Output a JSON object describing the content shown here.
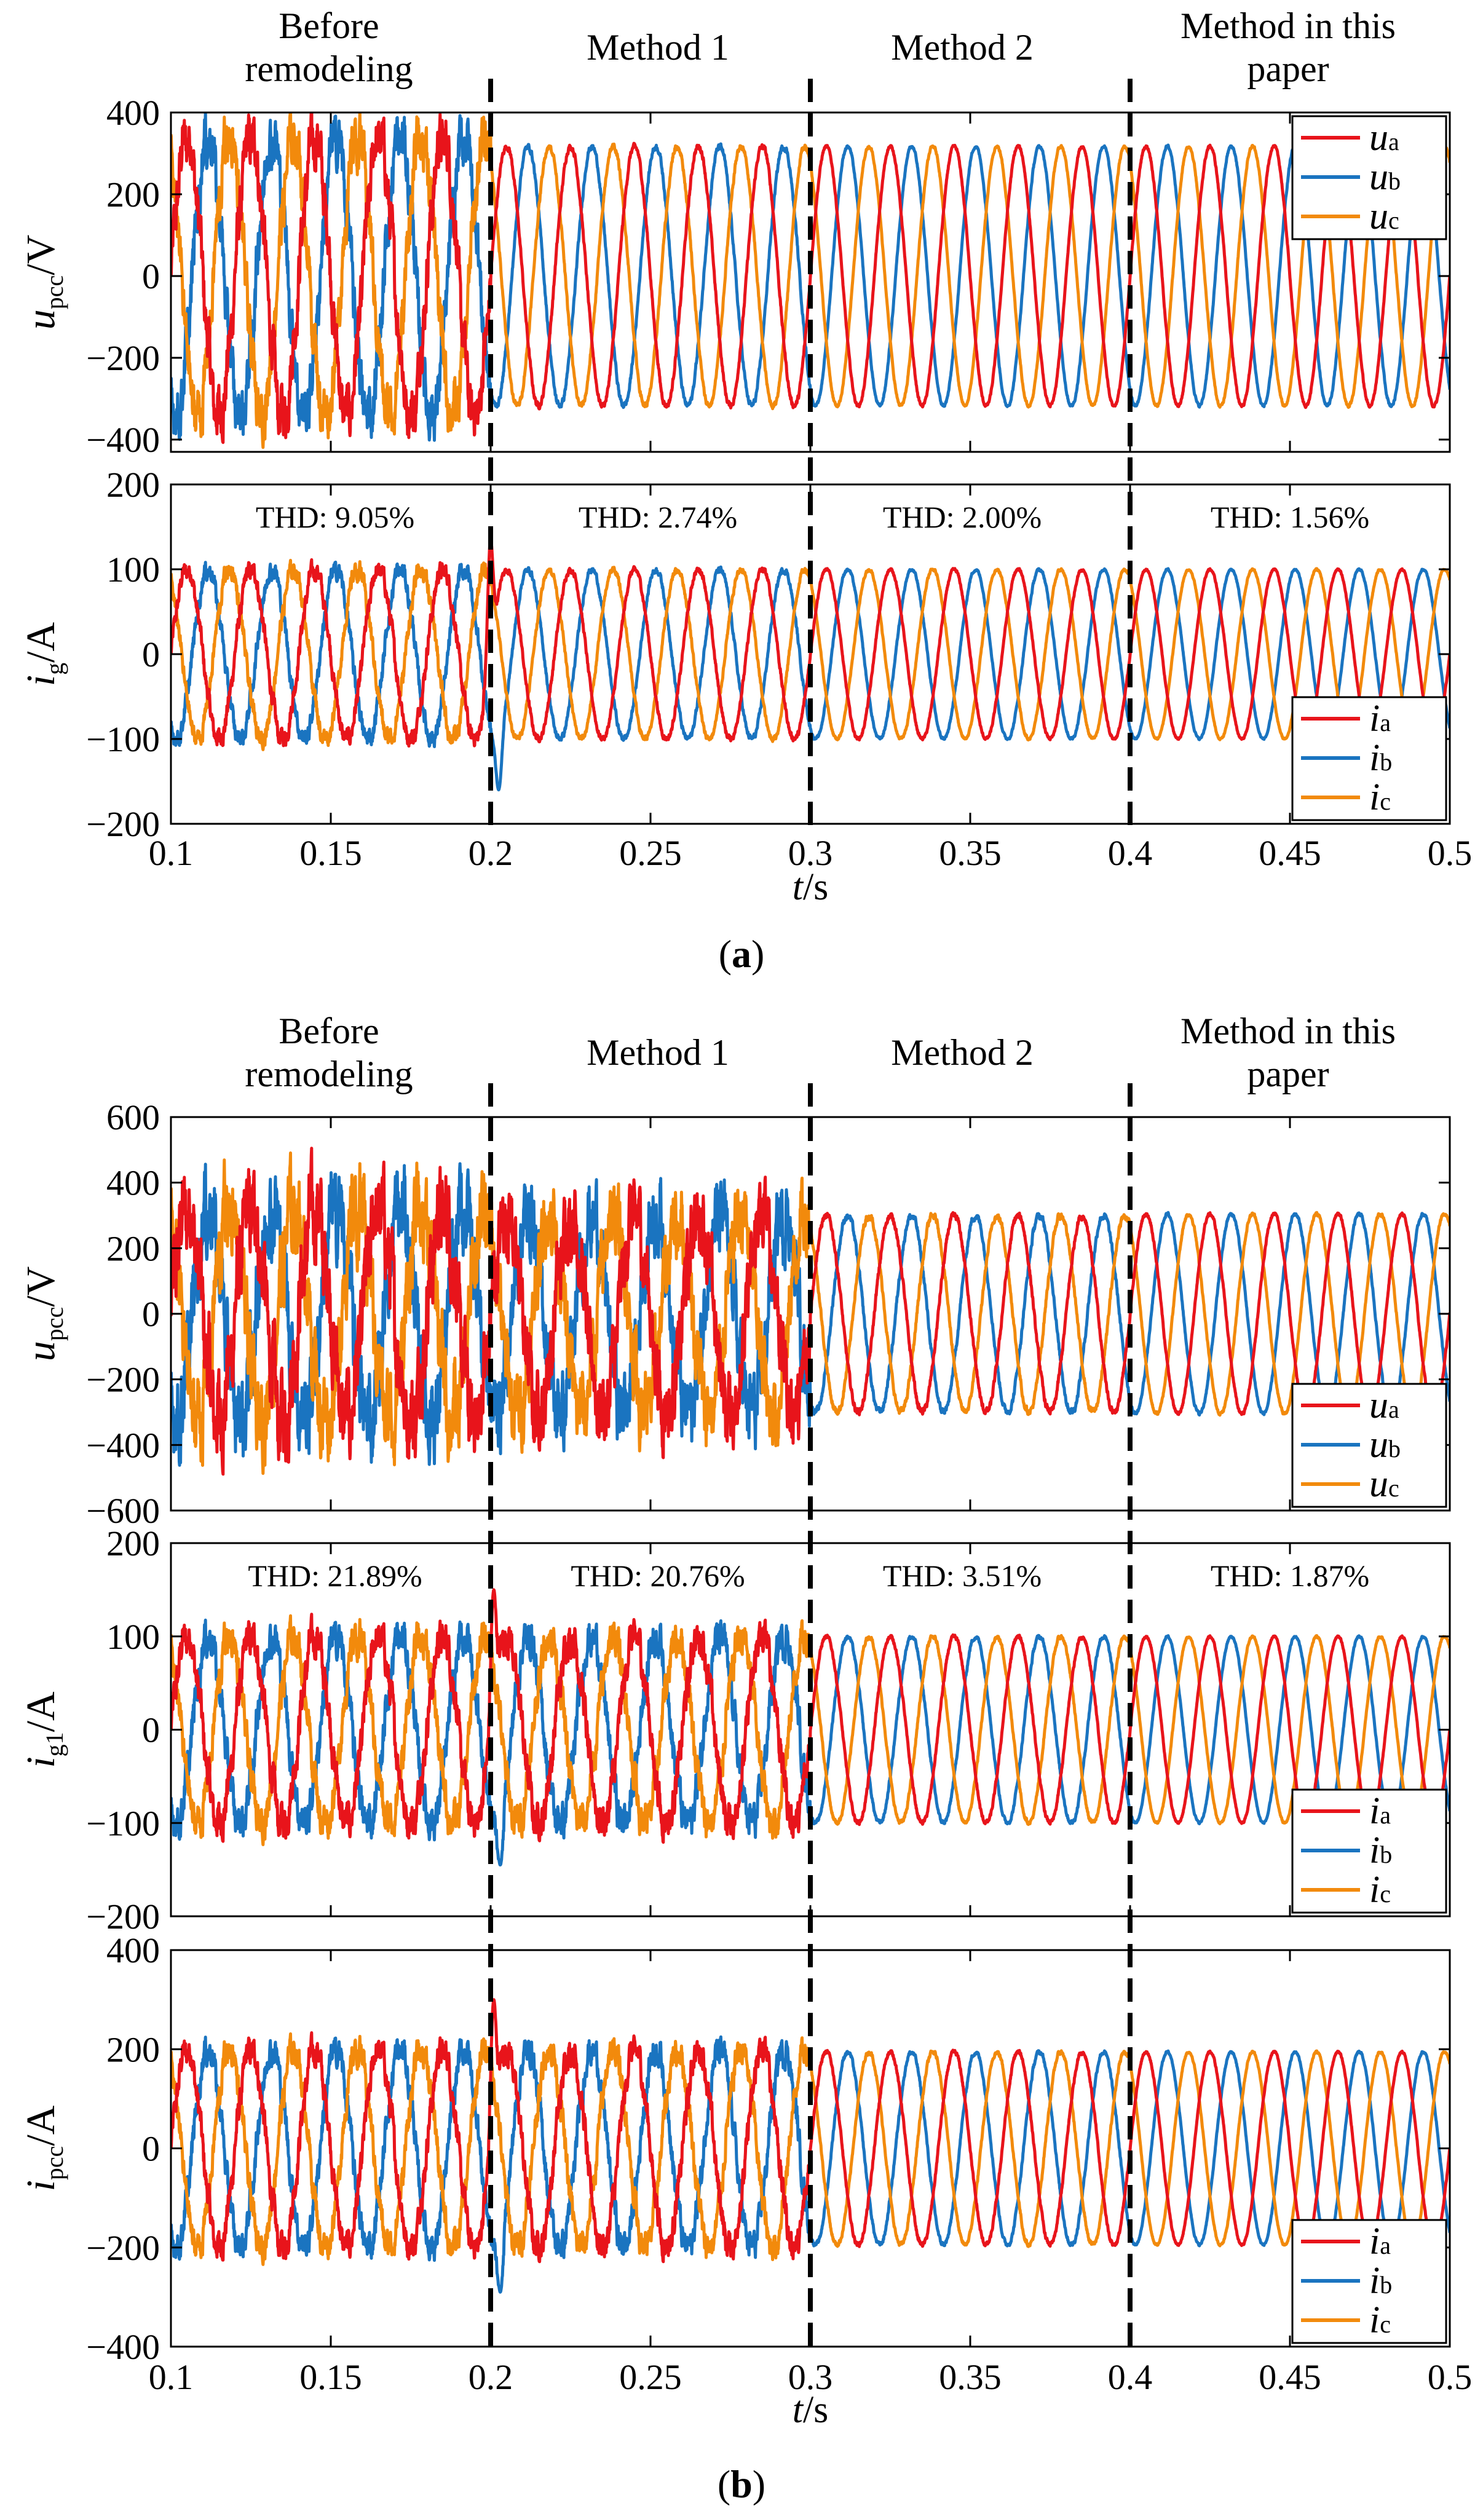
{
  "colors": {
    "a": "#e8141b",
    "b": "#1a74c0",
    "c": "#f28a0c",
    "axis": "#000000",
    "divider": "#000000"
  },
  "chart_data": [
    {
      "type": "line",
      "panel": "a",
      "caption": "(a)",
      "xlabel": "t/s",
      "xlim": [
        0.1,
        0.5
      ],
      "xticks": [
        "0.1",
        "0.15",
        "0.2",
        "0.25",
        "0.3",
        "0.35",
        "0.4",
        "0.45",
        "0.5"
      ],
      "dividers": [
        0.2,
        0.3,
        0.4
      ],
      "segment_titles": [
        {
          "lines": [
            "Before",
            "remodeling"
          ]
        },
        {
          "lines": [
            "Method 1"
          ]
        },
        {
          "lines": [
            "Method 2"
          ]
        },
        {
          "lines": [
            "Method in this",
            "paper"
          ]
        }
      ],
      "subplots": [
        {
          "id": "a1",
          "ylabel_main": "u",
          "ylabel_sub": "pcc",
          "ylabel_unit": "/V",
          "ylim": [
            -430,
            400
          ],
          "yticks": [
            "400",
            "200",
            "0",
            "-200",
            "-400"
          ],
          "legend": {
            "position": "top-right",
            "entries": [
              {
                "name": "u",
                "sub": "a",
                "color": "a"
              },
              {
                "name": "u",
                "sub": "b",
                "color": "b"
              },
              {
                "name": "u",
                "sub": "c",
                "color": "c"
              }
            ]
          },
          "thd": [],
          "segments": [
            {
              "t0": 0.1,
              "t1": 0.2,
              "amplitude": 340,
              "noise": 0.16
            },
            {
              "t0": 0.2,
              "t1": 0.3,
              "amplitude": 318,
              "noise": 0.02
            },
            {
              "t0": 0.3,
              "t1": 0.4,
              "amplitude": 318,
              "noise": 0.01
            },
            {
              "t0": 0.4,
              "t1": 0.5,
              "amplitude": 318,
              "noise": 0.01
            }
          ],
          "transients": [
            {
              "t": 0.2,
              "peak": 0
            }
          ]
        },
        {
          "id": "a2",
          "ylabel_main": "i",
          "ylabel_sub": "g",
          "ylabel_unit": "/A",
          "ylim": [
            -200,
            200
          ],
          "yticks": [
            "200",
            "100",
            "0",
            "-100",
            "-200"
          ],
          "legend": {
            "position": "bottom-right",
            "entries": [
              {
                "name": "i",
                "sub": "a",
                "color": "a"
              },
              {
                "name": "i",
                "sub": "b",
                "color": "b"
              },
              {
                "name": "i",
                "sub": "c",
                "color": "c"
              }
            ]
          },
          "thd": [
            "THD: 9.05%",
            "THD: 2.74%",
            "THD: 2.00%",
            "THD: 1.56%"
          ],
          "segments": [
            {
              "t0": 0.1,
              "t1": 0.2,
              "amplitude": 100,
              "noise": 0.09
            },
            {
              "t0": 0.2,
              "t1": 0.3,
              "amplitude": 100,
              "noise": 0.03
            },
            {
              "t0": 0.3,
              "t1": 0.4,
              "amplitude": 100,
              "noise": 0.015
            },
            {
              "t0": 0.4,
              "t1": 0.5,
              "amplitude": 100,
              "noise": 0.01
            }
          ],
          "transients": [
            {
              "t": 0.2,
              "peak": 135
            },
            {
              "t": 0.2025,
              "peak": -160
            }
          ]
        }
      ]
    },
    {
      "type": "line",
      "panel": "b",
      "caption": "(b)",
      "xlabel": "t/s",
      "xlim": [
        0.1,
        0.5
      ],
      "xticks": [
        "0.1",
        "0.15",
        "0.2",
        "0.25",
        "0.3",
        "0.35",
        "0.4",
        "0.45",
        "0.5"
      ],
      "dividers": [
        0.2,
        0.3,
        0.4
      ],
      "segment_titles": [
        {
          "lines": [
            "Before",
            "remodeling"
          ]
        },
        {
          "lines": [
            "Method 1"
          ]
        },
        {
          "lines": [
            "Method 2"
          ]
        },
        {
          "lines": [
            "Method in this",
            "paper"
          ]
        }
      ],
      "subplots": [
        {
          "id": "b1",
          "ylabel_main": "u",
          "ylabel_sub": "pcc",
          "ylabel_unit": "/V",
          "ylim": [
            -600,
            600
          ],
          "yticks": [
            "600",
            "400",
            "200",
            "0",
            "-200",
            "-400",
            "-600"
          ],
          "legend": {
            "position": "bottom-right",
            "entries": [
              {
                "name": "u",
                "sub": "a",
                "color": "a"
              },
              {
                "name": "u",
                "sub": "b",
                "color": "b"
              },
              {
                "name": "u",
                "sub": "c",
                "color": "c"
              }
            ]
          },
          "thd": [],
          "segments": [
            {
              "t0": 0.1,
              "t1": 0.2,
              "amplitude": 320,
              "noise": 0.35
            },
            {
              "t0": 0.2,
              "t1": 0.3,
              "amplitude": 300,
              "noise": 0.32
            },
            {
              "t0": 0.3,
              "t1": 0.4,
              "amplitude": 300,
              "noise": 0.03
            },
            {
              "t0": 0.4,
              "t1": 0.5,
              "amplitude": 305,
              "noise": 0.015
            }
          ],
          "transients": []
        },
        {
          "id": "b2",
          "ylabel_main": "i",
          "ylabel_sub": "g1",
          "ylabel_unit": "/A",
          "ylim": [
            -200,
            200
          ],
          "yticks": [
            "200",
            "100",
            "0",
            "-100",
            "-200"
          ],
          "legend": {
            "position": "bottom-right",
            "entries": [
              {
                "name": "i",
                "sub": "a",
                "color": "a"
              },
              {
                "name": "i",
                "sub": "b",
                "color": "b"
              },
              {
                "name": "i",
                "sub": "c",
                "color": "c"
              }
            ]
          },
          "thd": [
            "THD: 21.89%",
            "THD: 20.76%",
            "THD: 3.51%",
            "THD: 1.87%"
          ],
          "segments": [
            {
              "t0": 0.1,
              "t1": 0.2,
              "amplitude": 100,
              "noise": 0.16
            },
            {
              "t0": 0.2,
              "t1": 0.3,
              "amplitude": 100,
              "noise": 0.16
            },
            {
              "t0": 0.3,
              "t1": 0.4,
              "amplitude": 100,
              "noise": 0.02
            },
            {
              "t0": 0.4,
              "t1": 0.5,
              "amplitude": 100,
              "noise": 0.01
            }
          ],
          "transients": [
            {
              "t": 0.201,
              "peak": 150
            },
            {
              "t": 0.203,
              "peak": -145
            }
          ]
        },
        {
          "id": "b3",
          "ylabel_main": "i",
          "ylabel_sub": "pcc",
          "ylabel_unit": "/A",
          "ylim": [
            -400,
            400
          ],
          "yticks": [
            "400",
            "200",
            "0",
            "-200",
            "-400"
          ],
          "legend": {
            "position": "bottom-right",
            "entries": [
              {
                "name": "i",
                "sub": "a",
                "color": "a"
              },
              {
                "name": "i",
                "sub": "b",
                "color": "b"
              },
              {
                "name": "i",
                "sub": "c",
                "color": "c"
              }
            ]
          },
          "thd": [],
          "segments": [
            {
              "t0": 0.1,
              "t1": 0.2,
              "amplitude": 200,
              "noise": 0.12
            },
            {
              "t0": 0.2,
              "t1": 0.3,
              "amplitude": 200,
              "noise": 0.12
            },
            {
              "t0": 0.3,
              "t1": 0.4,
              "amplitude": 195,
              "noise": 0.02
            },
            {
              "t0": 0.4,
              "t1": 0.5,
              "amplitude": 195,
              "noise": 0.01
            }
          ],
          "transients": [
            {
              "t": 0.201,
              "peak": 300
            },
            {
              "t": 0.203,
              "peak": -290
            }
          ]
        }
      ]
    }
  ]
}
